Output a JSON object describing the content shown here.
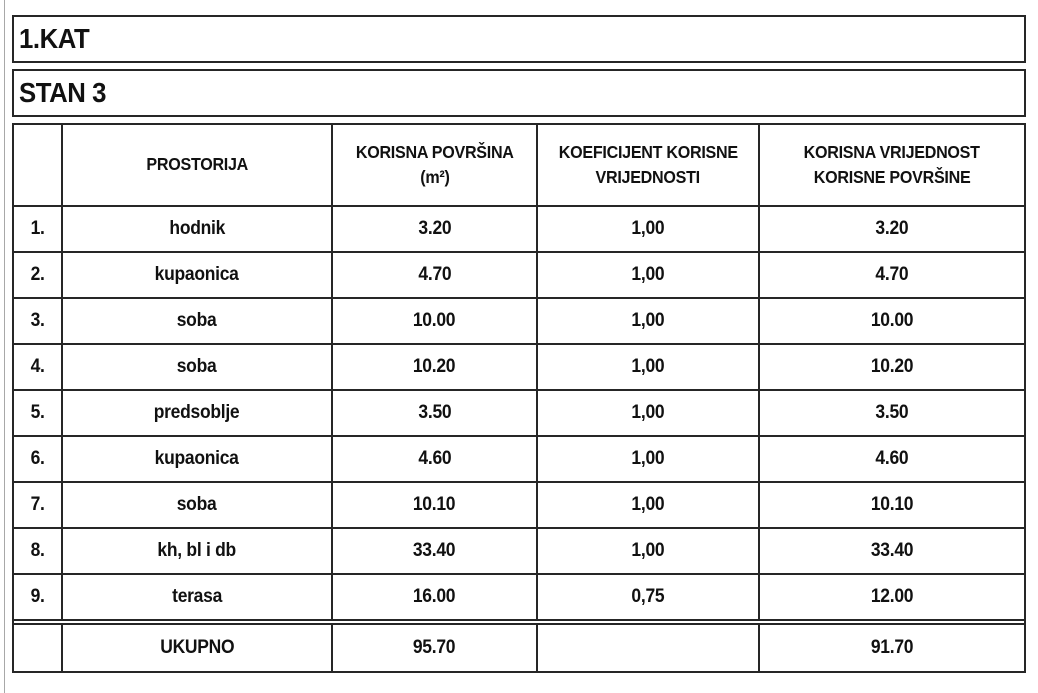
{
  "document": {
    "floor_title": "1.KAT",
    "unit_title": "STAN 3"
  },
  "table": {
    "headers": {
      "index": "",
      "room": "PROSTORIJA",
      "area_line1": "KORISNA POVRŠINA",
      "area_line2": "(m²)",
      "coef_line1": "KOEFICIJENT KORISNE",
      "coef_line2": "VRIJEDNOSTI",
      "value_line1": "KORISNA VRIJEDNOST",
      "value_line2": "KORISNE POVRŠINE"
    },
    "rows": [
      {
        "index": "1.",
        "room": "hodnik",
        "area": "3.20",
        "coef": "1,00",
        "value": "3.20"
      },
      {
        "index": "2.",
        "room": "kupaonica",
        "area": "4.70",
        "coef": "1,00",
        "value": "4.70"
      },
      {
        "index": "3.",
        "room": "soba",
        "area": "10.00",
        "coef": "1,00",
        "value": "10.00"
      },
      {
        "index": "4.",
        "room": "soba",
        "area": "10.20",
        "coef": "1,00",
        "value": "10.20"
      },
      {
        "index": "5.",
        "room": "predsoblje",
        "area": "3.50",
        "coef": "1,00",
        "value": "3.50"
      },
      {
        "index": "6.",
        "room": "kupaonica",
        "area": "4.60",
        "coef": "1,00",
        "value": "4.60"
      },
      {
        "index": "7.",
        "room": "soba",
        "area": "10.10",
        "coef": "1,00",
        "value": "10.10"
      },
      {
        "index": "8.",
        "room": "kh, bl i db",
        "area": "33.40",
        "coef": "1,00",
        "value": "33.40"
      },
      {
        "index": "9.",
        "room": "terasa",
        "area": "16.00",
        "coef": "0,75",
        "value": "12.00"
      }
    ],
    "total": {
      "index": "",
      "label": "UKUPNO",
      "area": "95.70",
      "coef": "",
      "value": "91.70"
    }
  },
  "colors": {
    "text": "#111111",
    "border": "#262626",
    "frame_line": "#a8a8a8",
    "background": "#ffffff"
  }
}
